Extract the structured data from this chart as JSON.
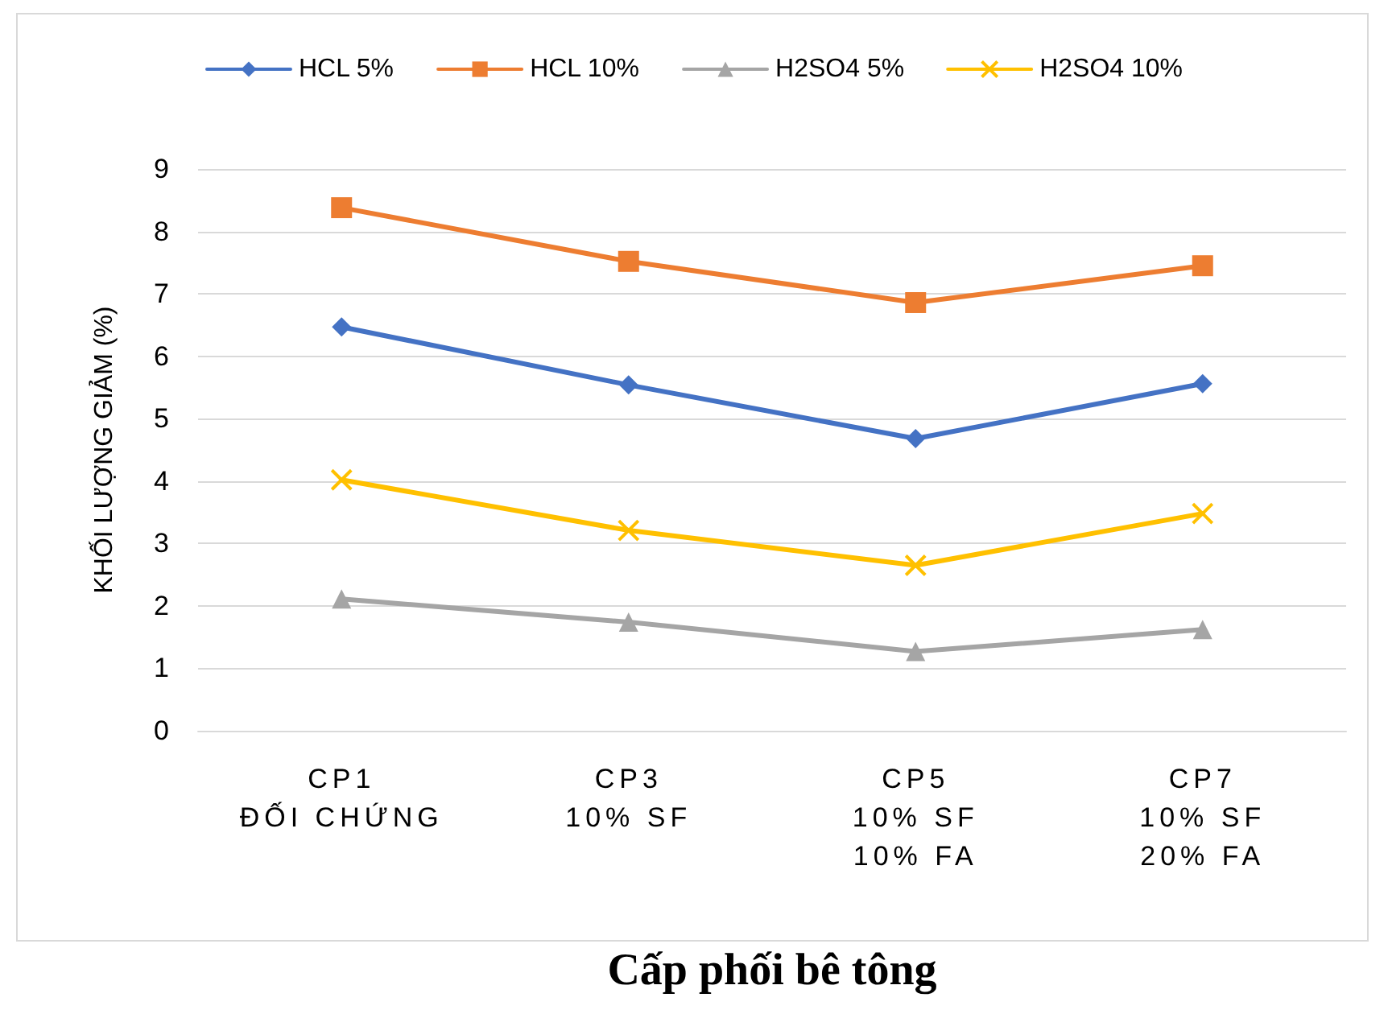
{
  "chart_data": {
    "type": "line",
    "xlabel": "Cấp phối bê tông",
    "ylabel": "KHỐI LƯỢNG GIẢM (%)",
    "categories": [
      "CP1\nĐỐI CHỨNG",
      "CP3\n10% SF",
      "CP5\n10% SF\n10% FA",
      "CP7\n10% SF\n20% FA"
    ],
    "series": [
      {
        "name": "HCL 5%",
        "color": "#4472c4",
        "marker": "diamond",
        "values": [
          6.47,
          5.54,
          4.68,
          5.56
        ]
      },
      {
        "name": "HCL 10%",
        "color": "#ed7d31",
        "marker": "square",
        "values": [
          8.38,
          7.52,
          6.86,
          7.45
        ]
      },
      {
        "name": "H2SO4 5%",
        "color": "#a5a5a5",
        "marker": "triangle",
        "values": [
          2.11,
          1.74,
          1.27,
          1.62
        ]
      },
      {
        "name": "H2SO4 10%",
        "color": "#ffc000",
        "marker": "cross",
        "values": [
          4.02,
          3.21,
          2.65,
          3.48
        ]
      }
    ],
    "ylim": [
      0,
      9
    ],
    "yticks": [
      0,
      1,
      2,
      3,
      4,
      5,
      6,
      7,
      8,
      9
    ],
    "grid": "y",
    "legend": "top"
  }
}
